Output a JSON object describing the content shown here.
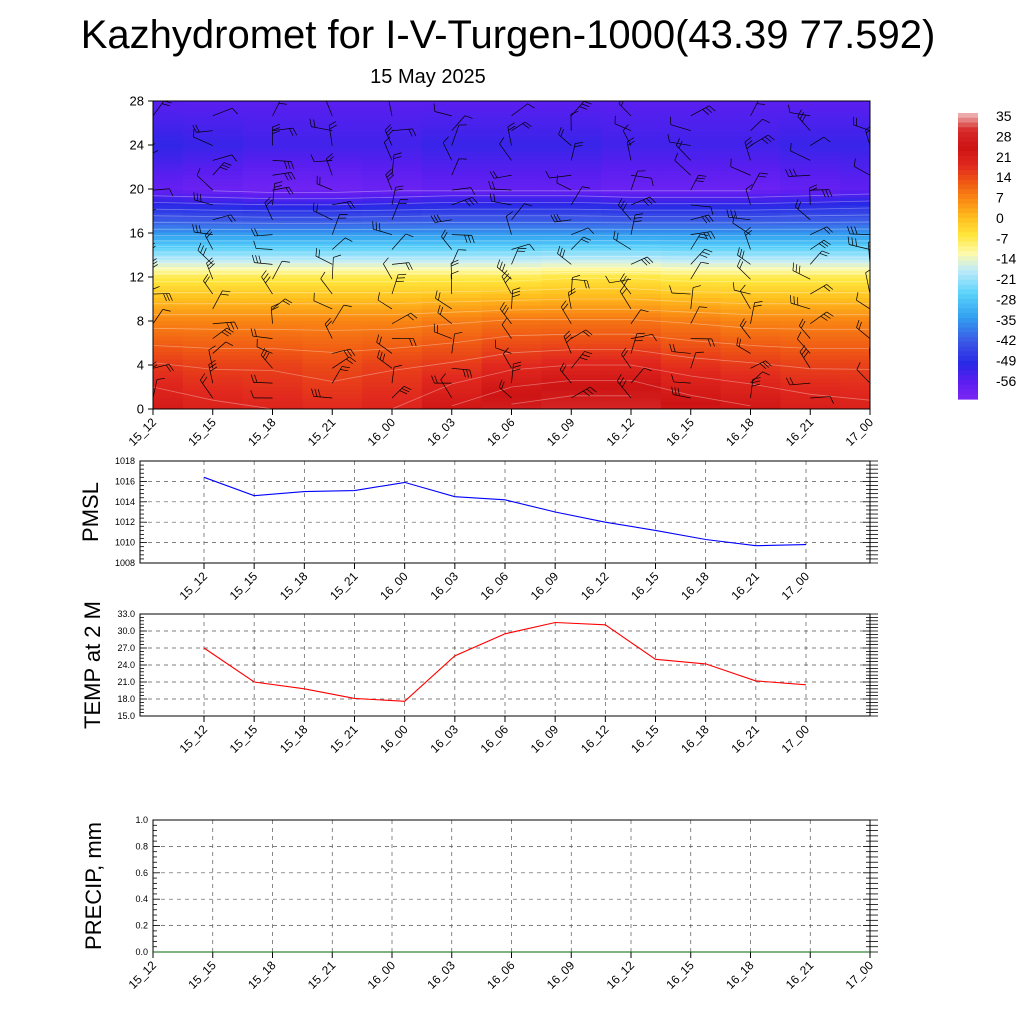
{
  "title": "Kazhydromet for I-V-Turgen-1000(43.39 77.592)",
  "subtitle": "15 May 2025",
  "time_labels": [
    "15_12",
    "15_15",
    "15_18",
    "15_21",
    "16_00",
    "16_03",
    "16_06",
    "16_09",
    "16_12",
    "16_15",
    "16_18",
    "16_21",
    "17_00"
  ],
  "chart_data": [
    {
      "type": "heatmap",
      "description_key": "cross-section",
      "x": [
        "15_12",
        "15_15",
        "15_18",
        "15_21",
        "16_00",
        "16_03",
        "16_06",
        "16_09",
        "16_12",
        "16_15",
        "16_18",
        "16_21",
        "17_00"
      ],
      "y_levels": [
        0,
        4,
        8,
        12,
        16,
        20,
        24,
        28
      ],
      "y_ticks": [
        0,
        4,
        8,
        12,
        16,
        20,
        24,
        28
      ],
      "ylim": [
        0,
        28
      ],
      "temperature_by_level": [
        [
          24,
          22,
          21,
          20,
          21,
          25,
          29,
          31,
          31,
          27,
          25,
          23,
          22
        ],
        [
          18,
          17,
          17,
          16,
          17,
          18,
          20,
          21,
          21,
          19,
          18,
          17,
          17
        ],
        [
          9,
          9,
          9,
          9,
          9,
          10,
          11,
          11,
          11,
          10,
          9,
          9,
          9
        ],
        [
          -5,
          -5,
          -5,
          -5,
          -5,
          -5,
          -5,
          -4,
          -4,
          -5,
          -5,
          -5,
          -5
        ],
        [
          -33,
          -33,
          -33,
          -33,
          -33,
          -33,
          -33,
          -33,
          -33,
          -33,
          -33,
          -33,
          -33
        ],
        [
          -56,
          -57,
          -58,
          -58,
          -57,
          -56,
          -56,
          -56,
          -57,
          -57,
          -57,
          -56,
          -55
        ],
        [
          -49,
          -50,
          -51,
          -51,
          -51,
          -50,
          -50,
          -50,
          -51,
          -51,
          -51,
          -50,
          -50
        ],
        [
          -54,
          -54,
          -54,
          -54,
          -54,
          -54,
          -54,
          -54,
          -54,
          -54,
          -54,
          -54,
          -54
        ]
      ],
      "colorbar": {
        "labels": [
          "35",
          "28",
          "21",
          "14",
          "7",
          "0",
          "-7",
          "-14",
          "-21",
          "-28",
          "-35",
          "-42",
          "-49",
          "-56"
        ],
        "min": -60,
        "max": 38
      },
      "wind_barbs": true,
      "grid": false
    },
    {
      "type": "line",
      "ylabel": "PMSL",
      "categories": [
        "15_12",
        "15_15",
        "15_18",
        "15_21",
        "16_00",
        "16_03",
        "16_06",
        "16_09",
        "16_12",
        "16_15",
        "16_18",
        "16_21",
        "17_00"
      ],
      "series": [
        {
          "color": "#0000ff",
          "values": [
            1016.4,
            1014.6,
            1015.0,
            1015.1,
            1015.9,
            1014.5,
            1014.2,
            1013.0,
            1012.0,
            1011.2,
            1010.3,
            1009.7,
            1009.8
          ]
        }
      ],
      "ylim": [
        1008,
        1018
      ],
      "yticks": [
        "1008",
        "1010",
        "1012",
        "1014",
        "1016",
        "1018"
      ],
      "grid": true
    },
    {
      "type": "line",
      "ylabel": "TEMP at 2 M",
      "categories": [
        "15_12",
        "15_15",
        "15_18",
        "15_21",
        "16_00",
        "16_03",
        "16_06",
        "16_09",
        "16_12",
        "16_15",
        "16_18",
        "16_21",
        "17_00"
      ],
      "series": [
        {
          "color": "#ff0000",
          "values": [
            27.0,
            21.0,
            19.8,
            18.1,
            17.6,
            25.6,
            29.5,
            31.5,
            31.1,
            25.0,
            24.2,
            21.2,
            20.5
          ]
        }
      ],
      "ylim": [
        15,
        33
      ],
      "yticks": [
        "15.0",
        "18.0",
        "21.0",
        "24.0",
        "27.0",
        "30.0",
        "33.0"
      ],
      "grid": true
    },
    {
      "type": "line",
      "ylabel": "PRECIP, mm",
      "categories": [
        "15_12",
        "15_15",
        "15_18",
        "15_21",
        "16_00",
        "16_03",
        "16_06",
        "16_09",
        "16_12",
        "16_15",
        "16_18",
        "16_21",
        "17_00"
      ],
      "series": [
        {
          "color": "#006400",
          "values": [
            0,
            0,
            0,
            0,
            0,
            0,
            0,
            0,
            0,
            0,
            0,
            0,
            0
          ]
        }
      ],
      "ylim": [
        0,
        1
      ],
      "yticks": [
        "0.0",
        "0.2",
        "0.4",
        "0.6",
        "0.8",
        "1.0"
      ],
      "grid": true
    }
  ]
}
